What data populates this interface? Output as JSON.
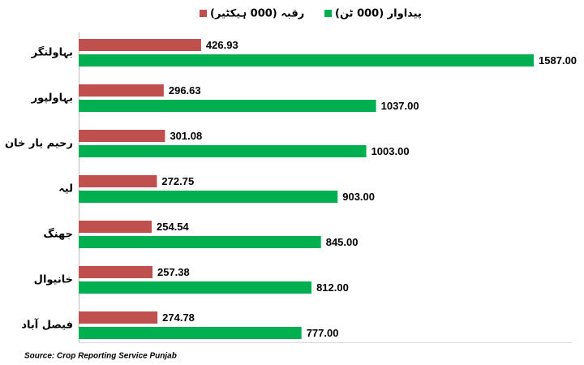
{
  "chart_data": {
    "type": "bar",
    "orientation": "horizontal",
    "categories": [
      "بہاولنگر",
      "بہاولپور",
      "رحیم یار خان",
      "لیہ",
      "جھنگ",
      "خانیوال",
      "فیصل آباد"
    ],
    "series": [
      {
        "name": "رقبہ (000 ہیکٹیر)",
        "color": "#c0504d",
        "values": [
          426.93,
          296.63,
          301.08,
          272.75,
          254.54,
          257.38,
          274.78
        ]
      },
      {
        "name": "پیداوار (000 ٹن)",
        "color": "#00b050",
        "values": [
          1587,
          1037,
          1003,
          903,
          845,
          812,
          777
        ],
        "value_labels": [
          "1587.00",
          "1037.00",
          "1003.00",
          "903.00",
          "845.00",
          "812.00",
          "777.00"
        ]
      }
    ],
    "xlim": [
      0,
      1700
    ],
    "source": "Source: Crop Reporting Service Punjab"
  }
}
